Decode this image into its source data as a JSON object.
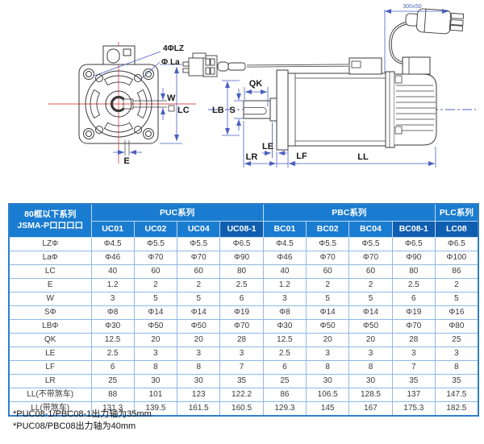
{
  "drawing": {
    "front_view": {
      "labels": {
        "holes": "4ΦLZ",
        "pilot": "Φ La",
        "key_width": "W",
        "frame": "LC",
        "key_offset": "E"
      }
    },
    "side_view": {
      "labels": {
        "key_length": "QK",
        "shaft": "S",
        "pilot": "LB",
        "le": "LE",
        "lr": "LR",
        "lf": "LF",
        "ll": "LL",
        "cable_length": "300±50"
      }
    }
  },
  "table": {
    "header": {
      "title_line1": "80框以下系列",
      "title_line2": "JSMA-P口口口口",
      "groups": [
        {
          "label": "PUC系列",
          "span": 4
        },
        {
          "label": "PBC系列",
          "span": 4
        },
        {
          "label": "PLC系列",
          "span": 1
        }
      ],
      "models": [
        "UC01",
        "UC02",
        "UC04",
        "UC08-1",
        "BC01",
        "BC02",
        "BC04",
        "BC08-1",
        "LC08"
      ],
      "dark_columns": [
        3,
        7,
        8
      ]
    },
    "rows": [
      {
        "label": "LZΦ",
        "values": [
          "Φ4.5",
          "Φ5.5",
          "Φ5.5",
          "Φ6.5",
          "Φ4.5",
          "Φ5.5",
          "Φ5.5",
          "Φ6.5",
          "Φ6.5"
        ]
      },
      {
        "label": "LaΦ",
        "values": [
          "Φ46",
          "Φ70",
          "Φ70",
          "Φ90",
          "Φ46",
          "Φ70",
          "Φ70",
          "Φ90",
          "Φ100"
        ]
      },
      {
        "label": "LC",
        "values": [
          "40",
          "60",
          "60",
          "80",
          "40",
          "60",
          "60",
          "80",
          "86"
        ]
      },
      {
        "label": "E",
        "values": [
          "1.2",
          "2",
          "2",
          "2.5",
          "1.2",
          "2",
          "2",
          "2.5",
          "2"
        ]
      },
      {
        "label": "W",
        "values": [
          "3",
          "5",
          "5",
          "6",
          "3",
          "5",
          "5",
          "6",
          "5"
        ]
      },
      {
        "label": "SΦ",
        "values": [
          "Φ8",
          "Φ14",
          "Φ14",
          "Φ19",
          "Φ8",
          "Φ14",
          "Φ14",
          "Φ19",
          "Φ16"
        ]
      },
      {
        "label": "LBΦ",
        "values": [
          "Φ30",
          "Φ50",
          "Φ50",
          "Φ70",
          "Φ30",
          "Φ50",
          "Φ50",
          "Φ70",
          "Φ80"
        ]
      },
      {
        "label": "QK",
        "values": [
          "12.5",
          "20",
          "20",
          "28",
          "12.5",
          "20",
          "20",
          "28",
          "25"
        ]
      },
      {
        "label": "LE",
        "values": [
          "2.5",
          "3",
          "3",
          "3",
          "2.5",
          "3",
          "3",
          "3",
          "3"
        ]
      },
      {
        "label": "LF",
        "values": [
          "6",
          "8",
          "8",
          "7",
          "6",
          "8",
          "8",
          "7",
          "8"
        ]
      },
      {
        "label": "LR",
        "values": [
          "25",
          "30",
          "30",
          "35",
          "25",
          "30",
          "30",
          "35",
          "35"
        ]
      },
      {
        "label": "LL(不带煞车)",
        "values": [
          "88",
          "101",
          "123",
          "122.2",
          "86",
          "106.5",
          "128.5",
          "137",
          "147.5"
        ]
      },
      {
        "label": "LL(带煞车)",
        "values": [
          "131.3",
          "139.5",
          "161.5",
          "160.5",
          "129.3",
          "145",
          "167",
          "175.3",
          "182.5"
        ]
      }
    ]
  },
  "footnotes": [
    "*PUC08-1/PBC08-1出力轴为35mm",
    "*PUC08/PBC08出力轴为40mm"
  ],
  "colors": {
    "header_blue": "#1a7cd0",
    "header_dark_blue": "#0f5eb0",
    "grid_blue": "#8fb9e3",
    "outer_border": "#2f7fc9",
    "dimension_blue": "#4a5fc0",
    "centerline_red": "#d95454",
    "line_dark": "#3a3a3a"
  }
}
